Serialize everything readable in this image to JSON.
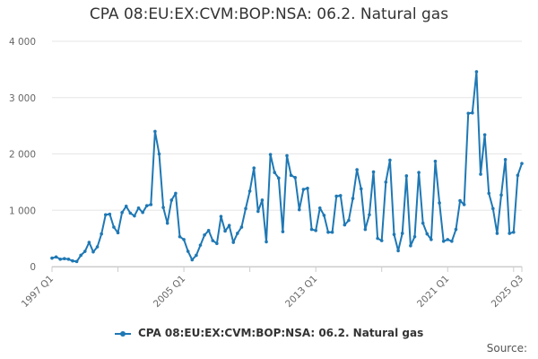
{
  "chart_data": {
    "type": "line",
    "title": "CPA 08:EU:EX:CVM:BOP:NSA: 06.2. Natural gas",
    "xlabel": "",
    "ylabel": "",
    "ylim": [
      0,
      4000
    ],
    "y_ticks": [
      0,
      1000,
      2000,
      3000,
      4000
    ],
    "y_tick_labels": [
      "0",
      "1 000",
      "2 000",
      "3 000",
      "4 000"
    ],
    "x_tick_labels": [
      "1997 Q1",
      "2005 Q1",
      "2013 Q1",
      "2021 Q1",
      "2025 Q3"
    ],
    "grid": true,
    "legend_position": "bottom",
    "series": [
      {
        "name": "CPA 08:EU:EX:CVM:BOP:NSA: 06.2. Natural gas",
        "color": "#1f78b4",
        "values": [
          150,
          170,
          130,
          140,
          130,
          100,
          90,
          200,
          270,
          430,
          260,
          350,
          580,
          920,
          930,
          700,
          600,
          960,
          1070,
          950,
          900,
          1040,
          960,
          1080,
          1100,
          2400,
          2000,
          1050,
          770,
          1180,
          1300,
          530,
          480,
          270,
          120,
          200,
          380,
          560,
          640,
          460,
          410,
          890,
          630,
          730,
          430,
          590,
          700,
          1030,
          1340,
          1750,
          980,
          1180,
          440,
          1990,
          1670,
          1570,
          620,
          1970,
          1620,
          1580,
          1010,
          1370,
          1390,
          660,
          640,
          1040,
          910,
          610,
          610,
          1250,
          1260,
          740,
          820,
          1210,
          1720,
          1380,
          660,
          920,
          1680,
          500,
          460,
          1500,
          1890,
          570,
          280,
          590,
          1610,
          370,
          530,
          1670,
          770,
          580,
          480,
          1870,
          1130,
          450,
          480,
          450,
          660,
          1170,
          1100,
          2720,
          2730,
          3460,
          1640,
          2340,
          1300,
          1030,
          590,
          1270,
          1900,
          590,
          610,
          1620,
          1830
        ]
      }
    ]
  },
  "legend": {
    "label": "CPA 08:EU:EX:CVM:BOP:NSA: 06.2. Natural gas"
  },
  "footer": {
    "source": "Source:"
  }
}
